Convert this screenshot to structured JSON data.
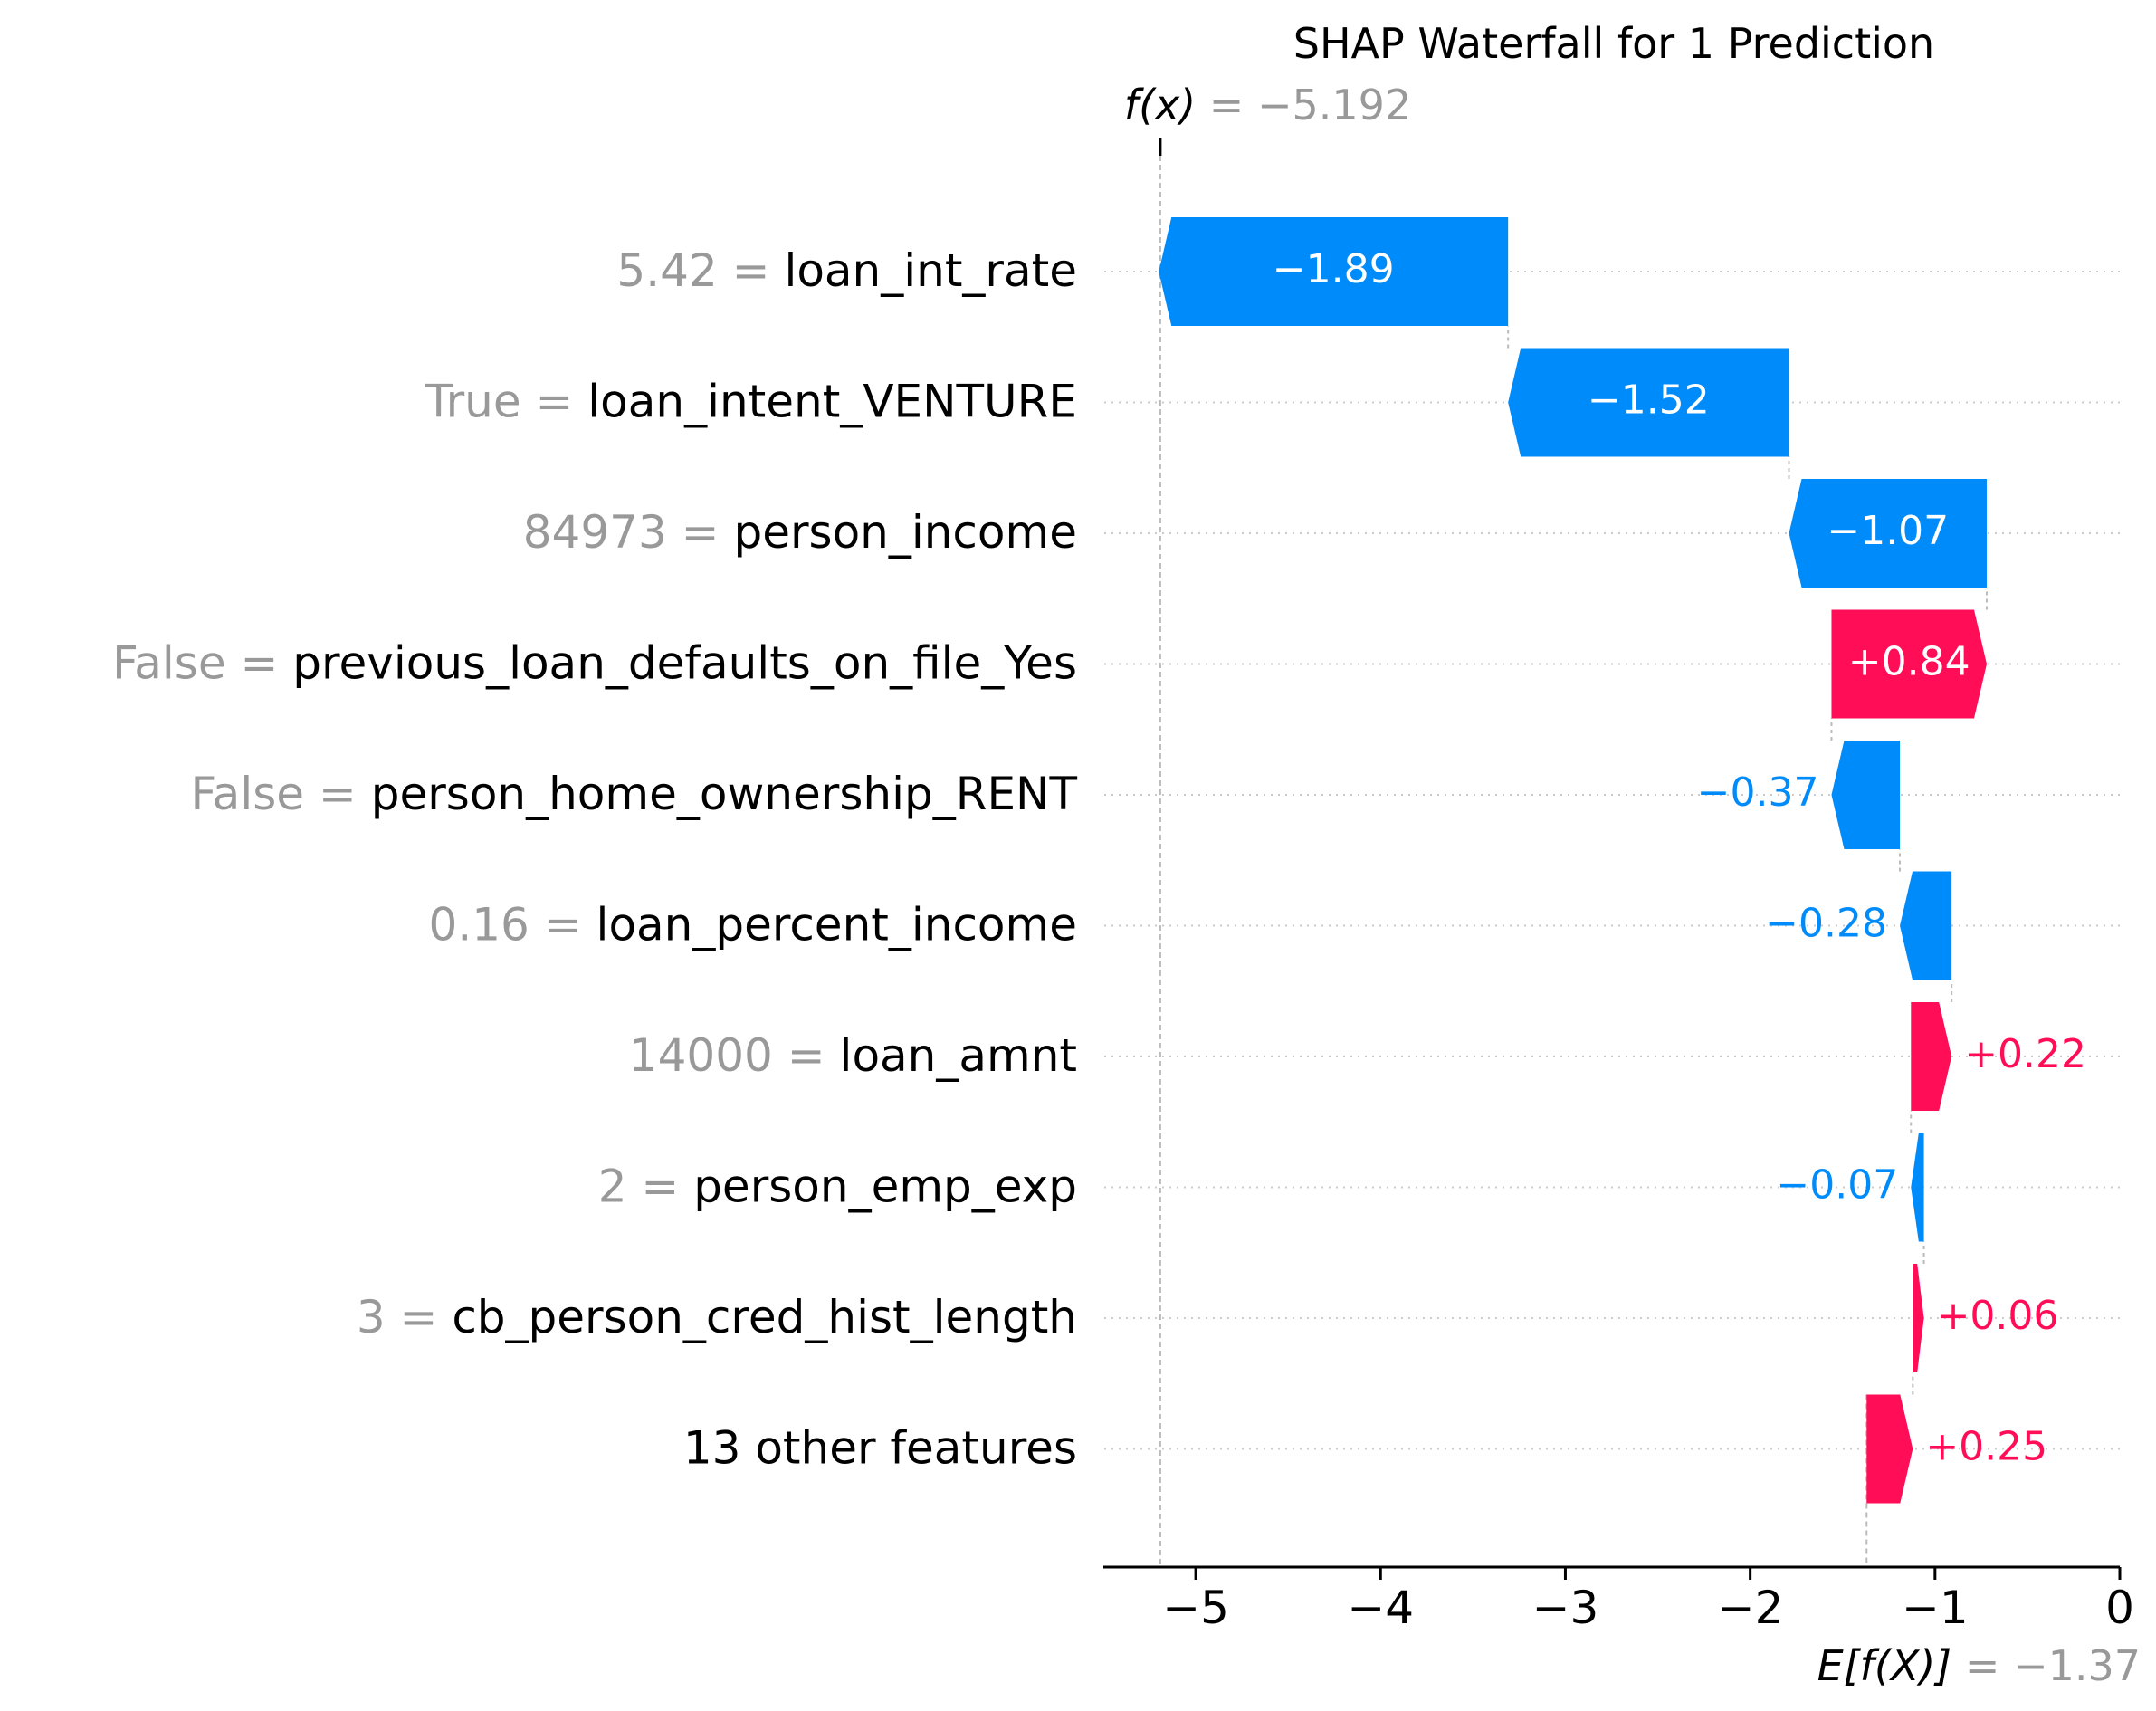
{
  "chart_data": {
    "type": "waterfall",
    "title": "SHAP Waterfall for 1 Prediction",
    "fx": {
      "label_prefix": "f(x)",
      "label_suffix": " = −5.192",
      "value": -5.192
    },
    "base": {
      "label_prefix": "E[f(X)]",
      "label_suffix": " = −1.37",
      "value": -1.37
    },
    "features": [
      {
        "value_text": "5.42",
        "name": "loan_int_rate",
        "shap": -1.89,
        "shap_label": "−1.89"
      },
      {
        "value_text": "True",
        "name": "loan_intent_VENTURE",
        "shap": -1.52,
        "shap_label": "−1.52"
      },
      {
        "value_text": "84973",
        "name": "person_income",
        "shap": -1.07,
        "shap_label": "−1.07"
      },
      {
        "value_text": "False",
        "name": "previous_loan_defaults_on_file_Yes",
        "shap": 0.84,
        "shap_label": "+0.84"
      },
      {
        "value_text": "False",
        "name": "person_home_ownership_RENT",
        "shap": -0.37,
        "shap_label": "−0.37"
      },
      {
        "value_text": "0.16",
        "name": "loan_percent_income",
        "shap": -0.28,
        "shap_label": "−0.28"
      },
      {
        "value_text": "14000",
        "name": "loan_amnt",
        "shap": 0.22,
        "shap_label": "+0.22"
      },
      {
        "value_text": "2",
        "name": "person_emp_exp",
        "shap": -0.07,
        "shap_label": "−0.07"
      },
      {
        "value_text": "3",
        "name": "cb_person_cred_hist_length",
        "shap": 0.06,
        "shap_label": "+0.06"
      },
      {
        "value_text": "",
        "name": "13 other features",
        "shap": 0.25,
        "shap_label": "+0.25"
      }
    ],
    "xaxis": {
      "ticks": [
        -5,
        -4,
        -3,
        -2,
        -1,
        0
      ],
      "tick_labels": [
        "−5",
        "−4",
        "−3",
        "−2",
        "−1",
        "0"
      ],
      "xlim": [
        -5.5,
        0.0
      ]
    },
    "grid": true,
    "colors": {
      "positive": "#ff0d57",
      "negative": "#008bfb",
      "feature_value": "#999999",
      "grid": "#cccccc",
      "axis": "#000000"
    }
  }
}
